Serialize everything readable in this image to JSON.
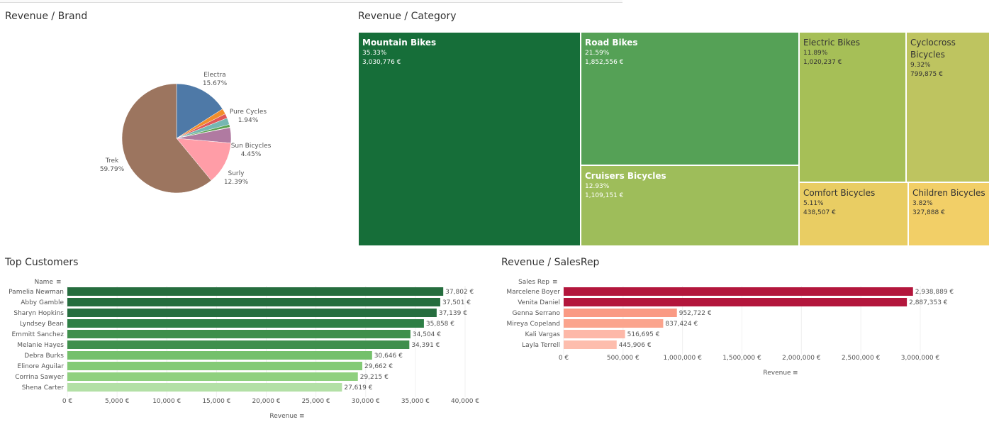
{
  "titles": {
    "brand": "Revenue / Brand",
    "category": "Revenue / Category",
    "customers": "Top Customers",
    "salesrep": "Revenue / SalesRep"
  },
  "pie": {
    "type": "pie",
    "slices": [
      {
        "label": "Electra",
        "pct_label": "15.67%",
        "value": 15.67,
        "color": "#4e79a7"
      },
      {
        "label": "",
        "pct_label": "",
        "value": 1.6,
        "color": "#f28e2b"
      },
      {
        "label": "",
        "pct_label": "",
        "value": 1.3,
        "color": "#e15759"
      },
      {
        "label": "Pure Cycles",
        "pct_label": "1.94%",
        "value": 1.94,
        "color": "#76b7b2"
      },
      {
        "label": "",
        "pct_label": "",
        "value": 0.8,
        "color": "#59a14f"
      },
      {
        "label": "",
        "pct_label": "",
        "value": 0.12,
        "color": "#edc948"
      },
      {
        "label": "Sun Bicycles",
        "pct_label": "4.45%",
        "value": 4.45,
        "color": "#b07aa1"
      },
      {
        "label": "Surly",
        "pct_label": "12.39%",
        "value": 12.39,
        "color": "#ff9da7"
      },
      {
        "label": "Trek",
        "pct_label": "59.79%",
        "value": 59.79,
        "color": "#9c755f"
      }
    ]
  },
  "treemap": [
    {
      "name": "Mountain Bikes",
      "pct": "35.33%",
      "value": "3,030,776 €",
      "color": "#166e39"
    },
    {
      "name": "Road Bikes",
      "pct": "21.59%",
      "value": "1,852,556 €",
      "color": "#55a156"
    },
    {
      "name": "Cruisers Bicycles",
      "pct": "12.93%",
      "value": "1,109,151 €",
      "color": "#9ebd5a"
    },
    {
      "name": "Electric Bikes",
      "pct": "11.89%",
      "value": "1,020,237 €",
      "color": "#a6bf57"
    },
    {
      "name": "Cyclocross Bicycles",
      "pct": "9.32%",
      "value": "799,875 €",
      "color": "#bec460"
    },
    {
      "name": "Comfort Bicycles",
      "pct": "5.11%",
      "value": "438,507 €",
      "color": "#e9cd63"
    },
    {
      "name": "Children Bicycles",
      "pct": "3.82%",
      "value": "327,888 €",
      "color": "#f2cf67"
    }
  ],
  "chart_data": [
    {
      "type": "bar",
      "orientation": "horizontal",
      "dimension_label": "Name",
      "xlabel": "Revenue",
      "xlim": [
        0,
        42000
      ],
      "ticks": [
        "0 €",
        "5,000 €",
        "10,000 €",
        "15,000 €",
        "20,000 €",
        "25,000 €",
        "30,000 €",
        "35,000 €",
        "40,000 €"
      ],
      "categories": [
        "Pamelia Newman",
        "Abby Gamble",
        "Sharyn Hopkins",
        "Lyndsey Bean",
        "Emmitt Sanchez",
        "Melanie Hayes",
        "Debra Burks",
        "Elinore Aguilar",
        "Corrina Sawyer",
        "Shena Carter"
      ],
      "values": [
        37802,
        37501,
        37139,
        35858,
        34504,
        34391,
        30646,
        29662,
        29215,
        27619
      ],
      "value_labels": [
        "37,802 €",
        "37,501 €",
        "37,139 €",
        "35,858 €",
        "34,504 €",
        "34,391 €",
        "30,646 €",
        "29,662 €",
        "29,215 €",
        "27,619 €"
      ],
      "colors": [
        "#256d3e",
        "#256d3e",
        "#266e3f",
        "#2e7f45",
        "#3f8f4c",
        "#3f8f4c",
        "#74c06b",
        "#84ca76",
        "#8fd07f",
        "#b3e0a6"
      ]
    },
    {
      "type": "bar",
      "orientation": "horizontal",
      "dimension_label": "Sales Rep",
      "xlabel": "Revenue",
      "xlim": [
        0,
        3400000
      ],
      "ticks": [
        "0 €",
        "500,000 €",
        "1,000,000 €",
        "1,500,000 €",
        "2,000,000 €",
        "2,500,000 €",
        "3,000,000 €"
      ],
      "categories": [
        "Marcelene Boyer",
        "Venita Daniel",
        "Genna Serrano",
        "Mireya Copeland",
        "Kali Vargas",
        "Layla Terrell"
      ],
      "values": [
        2938889,
        2887353,
        952722,
        837424,
        516695,
        445906
      ],
      "value_labels": [
        "2,938,889 €",
        "2,887,353 €",
        "952,722 €",
        "837,424 €",
        "516,695 €",
        "445,906 €"
      ],
      "colors": [
        "#b3163c",
        "#b3163c",
        "#fa9a84",
        "#fba48d",
        "#fdb8a8",
        "#fdbdad"
      ]
    }
  ]
}
